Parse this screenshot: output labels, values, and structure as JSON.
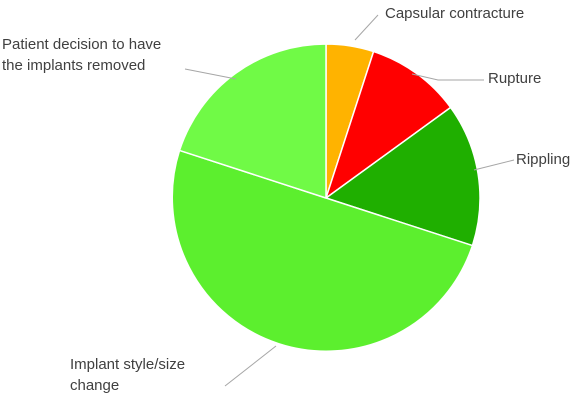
{
  "chart_data": {
    "type": "pie",
    "title": "",
    "legend": "none",
    "slices": [
      {
        "label": "Capsular contracture",
        "value": 5,
        "color": "#ffb300"
      },
      {
        "label": "Rupture",
        "value": 10,
        "color": "#ff0000"
      },
      {
        "label": "Rippling",
        "value": 15,
        "color": "#1faf00"
      },
      {
        "label": "Implant style/size change",
        "value": 50,
        "color": "#5cef2e"
      },
      {
        "label": "Patient decision to have the implants removed",
        "value": 20,
        "color": "#70fa46"
      }
    ],
    "label_lines": [
      [
        "Capsular contracture"
      ],
      [
        "Rupture"
      ],
      [
        "Rippling"
      ],
      [
        "Implant style/size",
        "change"
      ],
      [
        "Patient decision to have",
        "the implants removed"
      ]
    ]
  }
}
